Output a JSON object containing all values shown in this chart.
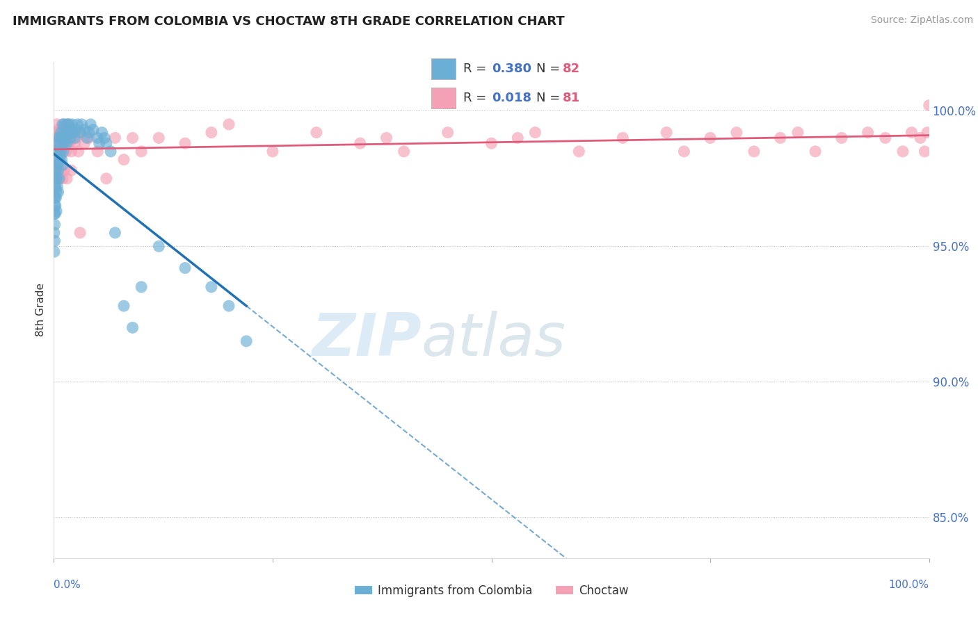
{
  "title": "IMMIGRANTS FROM COLOMBIA VS CHOCTAW 8TH GRADE CORRELATION CHART",
  "source": "Source: ZipAtlas.com",
  "series1_label": "Immigrants from Colombia",
  "series1_color": "#6baed6",
  "series1_R": "0.380",
  "series1_N": "82",
  "series2_label": "Choctaw",
  "series2_color": "#f4a0b5",
  "series2_R": "0.018",
  "series2_N": "81",
  "line1_color": "#2171b5",
  "line2_color": "#e05a7a",
  "watermark_zip": "ZIP",
  "watermark_atlas": "atlas",
  "ylabel": "8th Grade",
  "yaxis_labels": [
    "85.0%",
    "90.0%",
    "95.0%",
    "100.0%"
  ],
  "yaxis_values": [
    85.0,
    90.0,
    95.0,
    100.0
  ],
  "xlim": [
    0.0,
    100.0
  ],
  "ylim": [
    83.5,
    101.8
  ],
  "blue_x": [
    0.05,
    0.05,
    0.05,
    0.05,
    0.05,
    0.1,
    0.1,
    0.1,
    0.1,
    0.15,
    0.15,
    0.15,
    0.2,
    0.2,
    0.2,
    0.25,
    0.25,
    0.3,
    0.3,
    0.3,
    0.3,
    0.35,
    0.35,
    0.4,
    0.4,
    0.4,
    0.5,
    0.5,
    0.5,
    0.5,
    0.6,
    0.6,
    0.6,
    0.7,
    0.7,
    0.8,
    0.8,
    0.9,
    0.9,
    1.0,
    1.0,
    1.0,
    1.1,
    1.1,
    1.2,
    1.2,
    1.3,
    1.4,
    1.5,
    1.5,
    1.6,
    1.7,
    1.8,
    1.9,
    2.0,
    2.1,
    2.2,
    2.4,
    2.5,
    2.7,
    3.0,
    3.2,
    3.5,
    3.8,
    4.0,
    4.2,
    4.5,
    5.0,
    5.2,
    5.5,
    5.8,
    6.0,
    6.5,
    7.0,
    8.0,
    9.0,
    10.0,
    12.0,
    15.0,
    18.0,
    20.0,
    22.0
  ],
  "blue_y": [
    97.5,
    96.8,
    96.2,
    95.5,
    94.8,
    97.2,
    96.5,
    95.8,
    95.2,
    97.8,
    96.8,
    96.2,
    98.0,
    97.2,
    96.5,
    97.5,
    96.8,
    98.5,
    97.8,
    97.0,
    96.3,
    98.2,
    97.5,
    98.8,
    98.0,
    97.2,
    99.0,
    98.5,
    97.8,
    97.0,
    98.8,
    98.2,
    97.5,
    99.0,
    98.3,
    99.2,
    98.5,
    99.0,
    98.2,
    99.5,
    98.8,
    98.0,
    99.2,
    98.5,
    99.5,
    98.8,
    99.0,
    99.2,
    99.5,
    98.8,
    99.2,
    99.5,
    99.2,
    99.0,
    99.3,
    99.5,
    99.2,
    99.0,
    99.3,
    99.5,
    99.2,
    99.5,
    99.3,
    99.0,
    99.2,
    99.5,
    99.3,
    99.0,
    98.8,
    99.2,
    99.0,
    98.8,
    98.5,
    95.5,
    92.8,
    92.0,
    93.5,
    95.0,
    94.2,
    93.5,
    92.8,
    91.5
  ],
  "pink_x": [
    0.05,
    0.1,
    0.15,
    0.2,
    0.25,
    0.3,
    0.35,
    0.4,
    0.5,
    0.5,
    0.6,
    0.7,
    0.8,
    0.9,
    1.0,
    1.1,
    1.2,
    1.3,
    1.4,
    1.5,
    1.6,
    1.7,
    1.8,
    1.9,
    2.0,
    2.2,
    2.4,
    2.6,
    2.8,
    3.0,
    3.5,
    4.0,
    5.0,
    6.0,
    7.0,
    8.0,
    9.0,
    10.0,
    12.0,
    15.0,
    18.0,
    20.0,
    25.0,
    30.0,
    35.0,
    38.0,
    40.0,
    45.0,
    50.0,
    53.0,
    55.0,
    60.0,
    65.0,
    70.0,
    72.0,
    75.0,
    78.0,
    80.0,
    83.0,
    85.0,
    87.0,
    90.0,
    93.0,
    95.0,
    97.0,
    98.0,
    99.0,
    99.5,
    99.8,
    100.0,
    0.3,
    0.4,
    0.5,
    0.6,
    0.7,
    0.8,
    1.0,
    1.2,
    1.5,
    2.0,
    3.0
  ],
  "pink_y": [
    99.2,
    98.8,
    99.0,
    98.5,
    99.2,
    98.8,
    99.5,
    99.0,
    98.5,
    99.3,
    98.8,
    99.0,
    98.5,
    99.2,
    98.8,
    99.5,
    98.8,
    99.0,
    98.5,
    99.2,
    98.8,
    99.5,
    98.8,
    99.0,
    98.5,
    99.2,
    98.8,
    99.0,
    98.5,
    99.2,
    98.8,
    99.0,
    98.5,
    97.5,
    99.0,
    98.2,
    99.0,
    98.5,
    99.0,
    98.8,
    99.2,
    99.5,
    98.5,
    99.2,
    98.8,
    99.0,
    98.5,
    99.2,
    98.8,
    99.0,
    99.2,
    98.5,
    99.0,
    99.2,
    98.5,
    99.0,
    99.2,
    98.5,
    99.0,
    99.2,
    98.5,
    99.0,
    99.2,
    99.0,
    98.5,
    99.2,
    99.0,
    98.5,
    99.2,
    100.2,
    97.5,
    97.8,
    97.5,
    97.8,
    97.5,
    97.8,
    97.5,
    97.8,
    97.5,
    97.8,
    95.5
  ]
}
